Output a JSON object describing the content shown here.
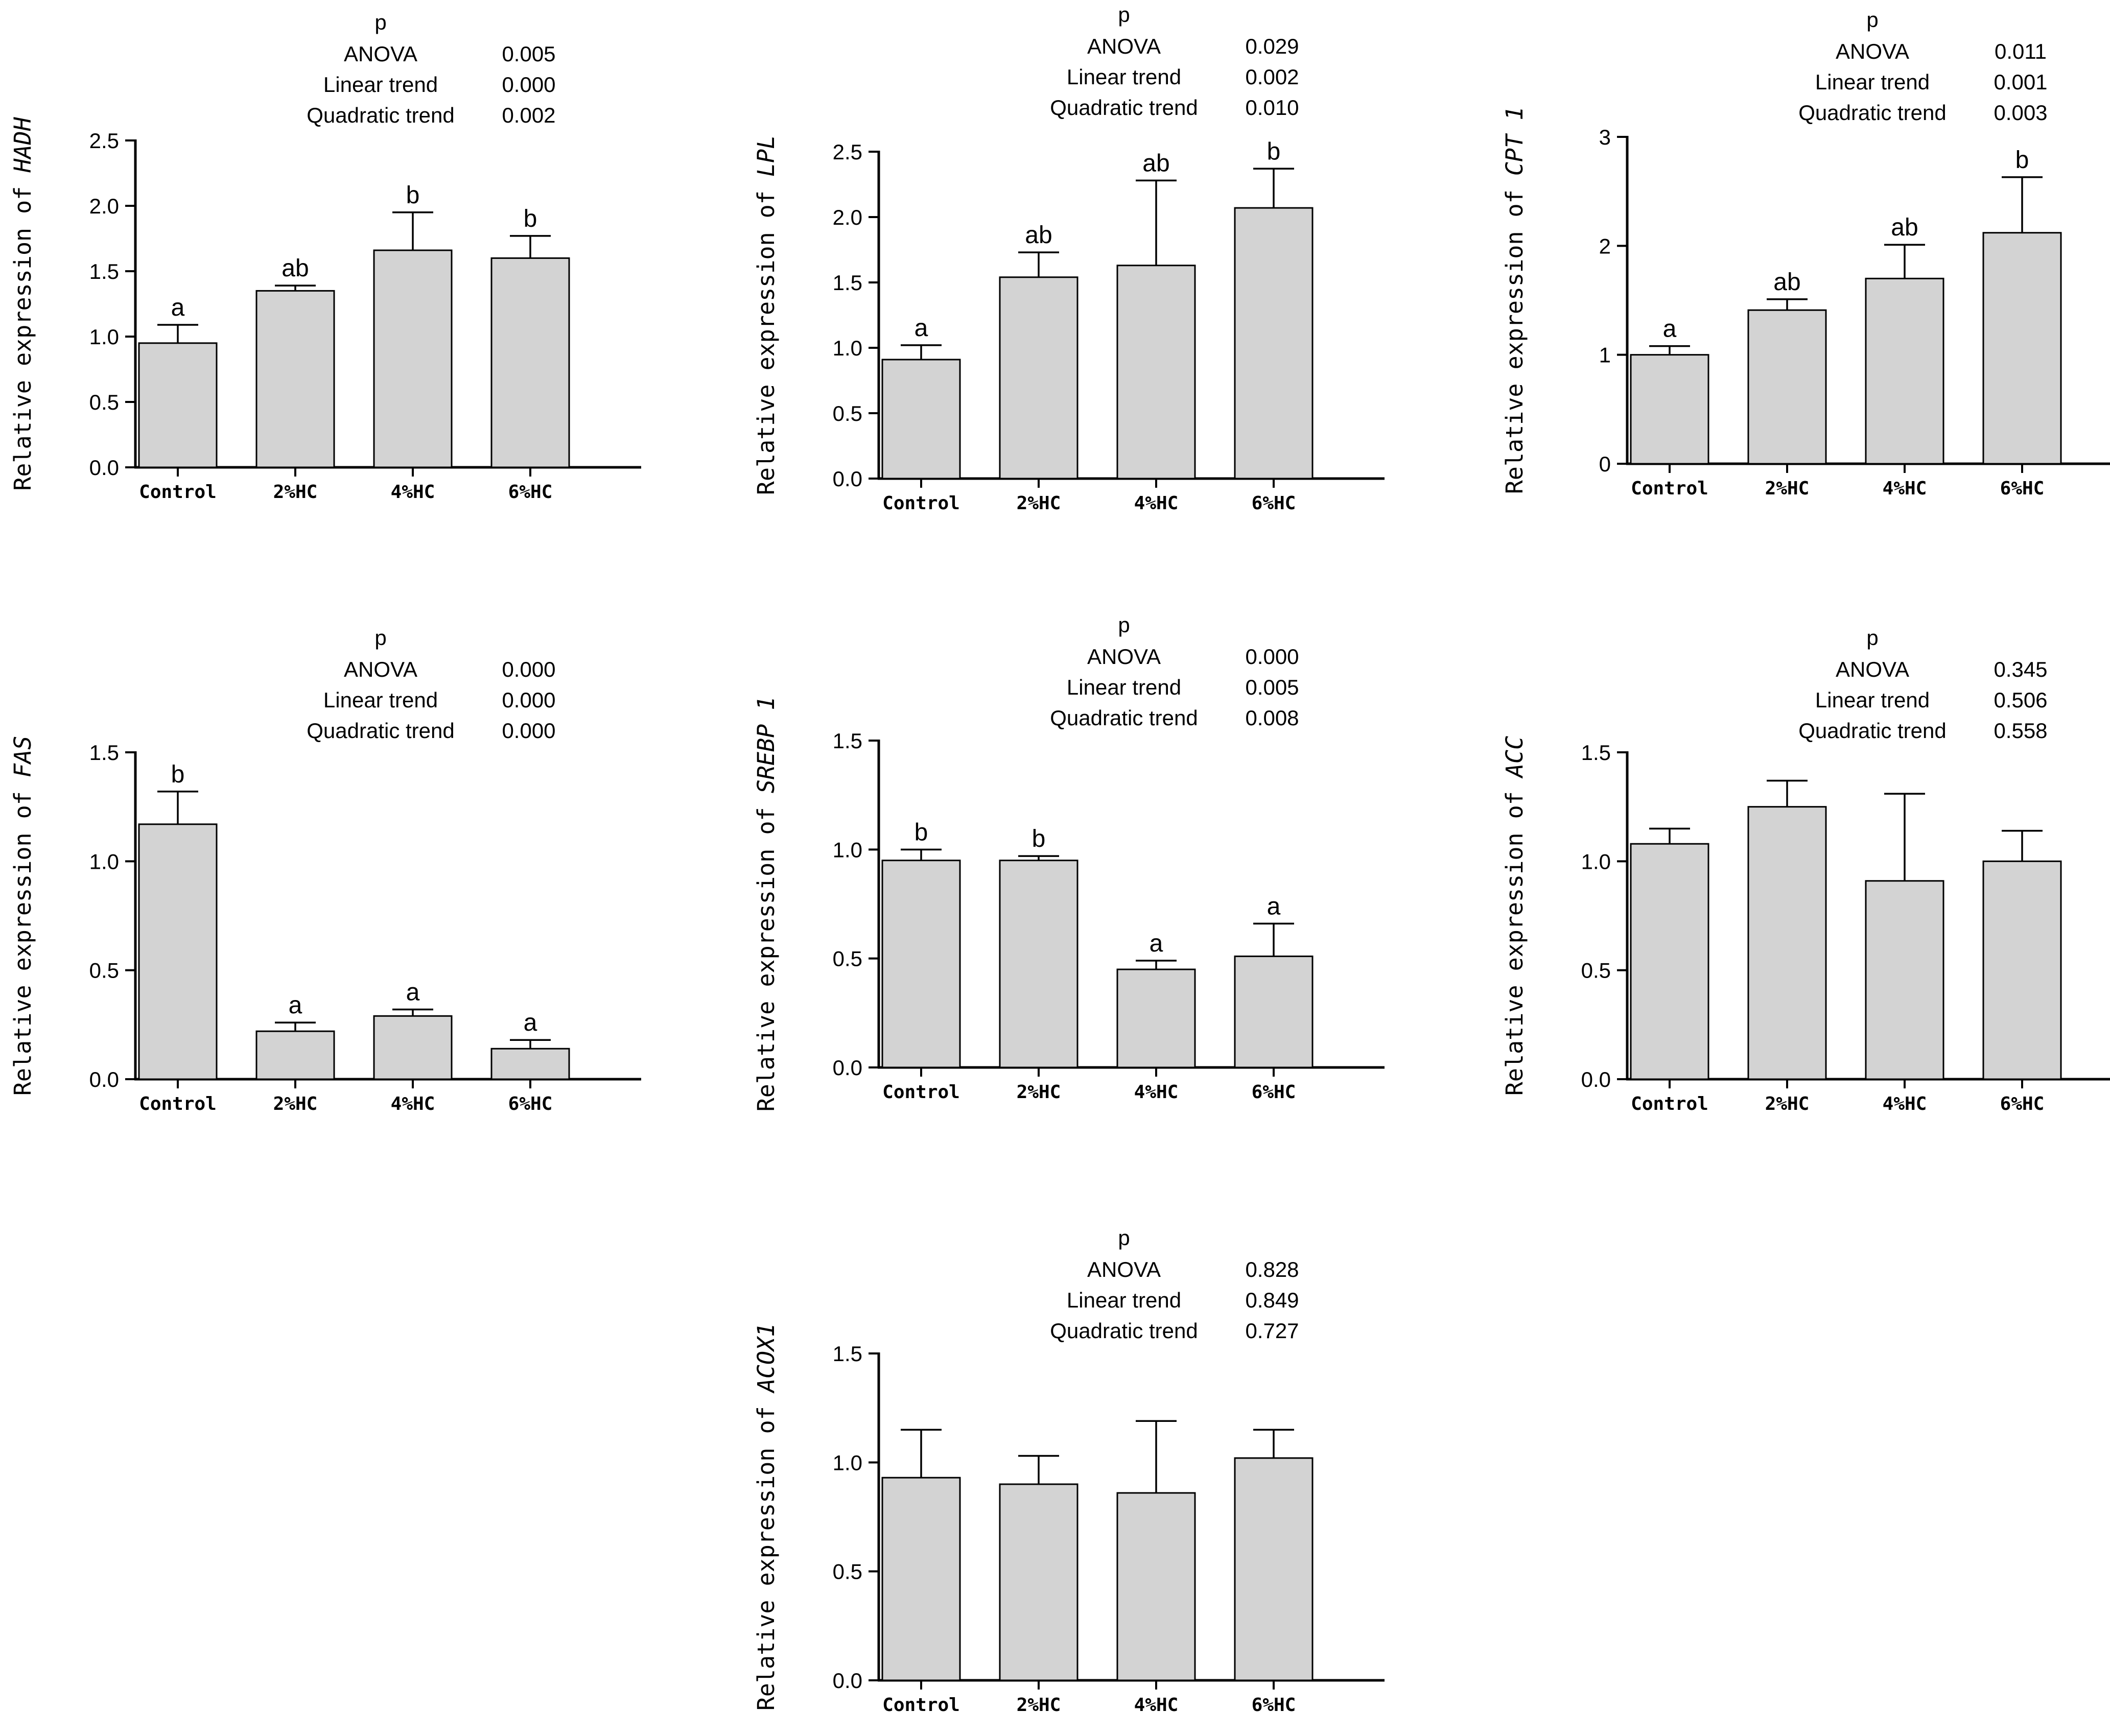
{
  "figure": {
    "ylabel_prefix": "Relative expression of ",
    "stats_header": "p",
    "stat_names": [
      "ANOVA",
      "Linear trend",
      "Quadratic trend"
    ],
    "colors": {
      "bar_fill": "#d3d3d3",
      "bar_stroke": "#000000",
      "axis": "#000000"
    }
  },
  "chart_data": [
    {
      "type": "bar",
      "gene": "HADH",
      "categories": [
        "Control",
        "2%HC",
        "4%HC",
        "6%HC"
      ],
      "values": [
        0.95,
        1.35,
        1.66,
        1.6
      ],
      "errors": [
        0.14,
        0.04,
        0.29,
        0.17
      ],
      "sig_labels": [
        "a",
        "ab",
        "b",
        "b"
      ],
      "ylim": [
        0,
        2.5
      ],
      "yticks": [
        "0.0",
        "0.5",
        "1.0",
        "1.5",
        "2.0",
        "2.5"
      ],
      "stats": [
        "0.005",
        "0.000",
        "0.002"
      ]
    },
    {
      "type": "bar",
      "gene": "LPL",
      "categories": [
        "Control",
        "2%HC",
        "4%HC",
        "6%HC"
      ],
      "values": [
        0.91,
        1.54,
        1.63,
        2.07
      ],
      "errors": [
        0.11,
        0.19,
        0.65,
        0.3
      ],
      "sig_labels": [
        "a",
        "ab",
        "ab",
        "b"
      ],
      "ylim": [
        0,
        2.5
      ],
      "yticks": [
        "0.0",
        "0.5",
        "1.0",
        "1.5",
        "2.0",
        "2.5"
      ],
      "stats": [
        "0.029",
        "0.002",
        "0.010"
      ]
    },
    {
      "type": "bar",
      "gene": "CPT 1",
      "categories": [
        "Control",
        "2%HC",
        "4%HC",
        "6%HC"
      ],
      "values": [
        1.0,
        1.41,
        1.7,
        2.12
      ],
      "errors": [
        0.08,
        0.1,
        0.31,
        0.51
      ],
      "sig_labels": [
        "a",
        "ab",
        "ab",
        "b"
      ],
      "ylim": [
        0,
        3
      ],
      "yticks": [
        "0",
        "1",
        "2",
        "3"
      ],
      "stats": [
        "0.011",
        "0.001",
        "0.003"
      ]
    },
    {
      "type": "bar",
      "gene": "FAS",
      "categories": [
        "Control",
        "2%HC",
        "4%HC",
        "6%HC"
      ],
      "values": [
        1.17,
        0.22,
        0.29,
        0.14
      ],
      "errors": [
        0.15,
        0.04,
        0.03,
        0.04
      ],
      "sig_labels": [
        "b",
        "a",
        "a",
        "a"
      ],
      "ylim": [
        0,
        1.5
      ],
      "yticks": [
        "0.0",
        "0.5",
        "1.0",
        "1.5"
      ],
      "stats": [
        "0.000",
        "0.000",
        "0.000"
      ]
    },
    {
      "type": "bar",
      "gene": "SREBP 1",
      "categories": [
        "Control",
        "2%HC",
        "4%HC",
        "6%HC"
      ],
      "values": [
        0.95,
        0.95,
        0.45,
        0.51
      ],
      "errors": [
        0.05,
        0.02,
        0.04,
        0.15
      ],
      "sig_labels": [
        "b",
        "b",
        "a",
        "a"
      ],
      "ylim": [
        0,
        1.5
      ],
      "yticks": [
        "0.0",
        "0.5",
        "1.0",
        "1.5"
      ],
      "stats": [
        "0.000",
        "0.005",
        "0.008"
      ]
    },
    {
      "type": "bar",
      "gene": "ACC",
      "categories": [
        "Control",
        "2%HC",
        "4%HC",
        "6%HC"
      ],
      "values": [
        1.08,
        1.25,
        0.91,
        1.0
      ],
      "errors": [
        0.07,
        0.12,
        0.4,
        0.14
      ],
      "sig_labels": [
        "",
        "",
        "",
        ""
      ],
      "ylim": [
        0,
        1.5
      ],
      "yticks": [
        "0.0",
        "0.5",
        "1.0",
        "1.5"
      ],
      "stats": [
        "0.345",
        "0.506",
        "0.558"
      ]
    },
    {
      "type": "bar",
      "gene": "ACOX1",
      "categories": [
        "Control",
        "2%HC",
        "4%HC",
        "6%HC"
      ],
      "values": [
        0.93,
        0.9,
        0.86,
        1.02
      ],
      "errors": [
        0.22,
        0.13,
        0.33,
        0.13
      ],
      "sig_labels": [
        "",
        "",
        "",
        ""
      ],
      "ylim": [
        0,
        1.5
      ],
      "yticks": [
        "0.0",
        "0.5",
        "1.0",
        "1.5"
      ],
      "stats": [
        "0.828",
        "0.849",
        "0.727"
      ]
    }
  ]
}
